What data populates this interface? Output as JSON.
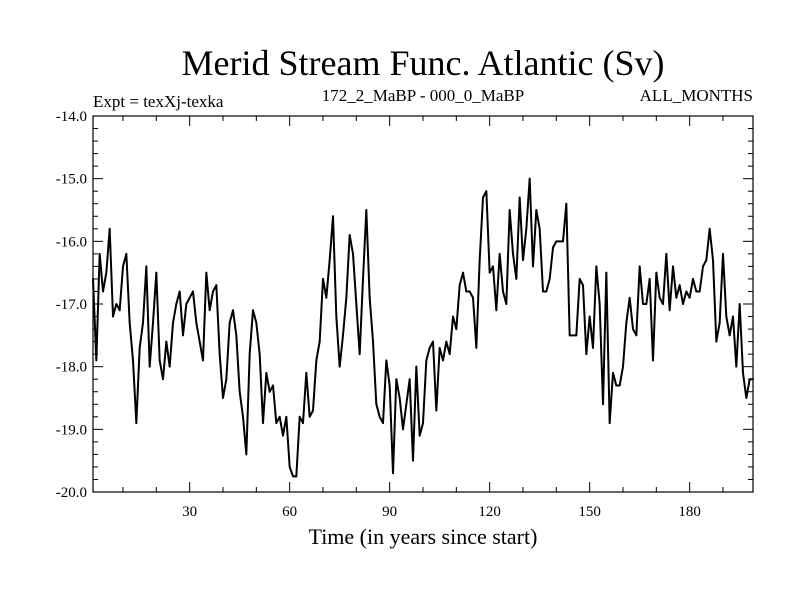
{
  "chart_data": {
    "type": "line",
    "title": "Merid Stream Func. Atlantic (Sv)",
    "subtitle_left": "Expt = texXj-texka",
    "subtitle_center": "172_2_MaBP - 000_0_MaBP",
    "subtitle_right": "ALL_MONTHS",
    "xlabel": "Time (in years since start)",
    "ylabel": "",
    "xlim": [
      1,
      199
    ],
    "ylim": [
      -20.0,
      -14.0
    ],
    "xticks": [
      30,
      60,
      90,
      120,
      150,
      180
    ],
    "yticks": [
      -14.0,
      -15.0,
      -16.0,
      -17.0,
      -18.0,
      -19.0,
      -20.0
    ],
    "ytick_labels": [
      "-14.0",
      "-15.0",
      "-16.0",
      "-17.0",
      "-18.0",
      "-19.0",
      "-20.0"
    ],
    "series": [
      {
        "name": "Merid Stream Func. Atlantic",
        "x": [
          1,
          2,
          3,
          4,
          5,
          6,
          7,
          8,
          9,
          10,
          11,
          12,
          13,
          14,
          15,
          16,
          17,
          18,
          19,
          20,
          21,
          22,
          23,
          24,
          25,
          26,
          27,
          28,
          29,
          30,
          31,
          32,
          33,
          34,
          35,
          36,
          37,
          38,
          39,
          40,
          41,
          42,
          43,
          44,
          45,
          46,
          47,
          48,
          49,
          50,
          51,
          52,
          53,
          54,
          55,
          56,
          57,
          58,
          59,
          60,
          61,
          62,
          63,
          64,
          65,
          66,
          67,
          68,
          69,
          70,
          71,
          72,
          73,
          74,
          75,
          76,
          77,
          78,
          79,
          80,
          81,
          82,
          83,
          84,
          85,
          86,
          87,
          88,
          89,
          90,
          91,
          92,
          93,
          94,
          95,
          96,
          97,
          98,
          99,
          100,
          101,
          102,
          103,
          104,
          105,
          106,
          107,
          108,
          109,
          110,
          111,
          112,
          113,
          114,
          115,
          116,
          117,
          118,
          119,
          120,
          121,
          122,
          123,
          124,
          125,
          126,
          127,
          128,
          129,
          130,
          131,
          132,
          133,
          134,
          135,
          136,
          137,
          138,
          139,
          140,
          141,
          142,
          143,
          144,
          145,
          146,
          147,
          148,
          149,
          150,
          151,
          152,
          153,
          154,
          155,
          156,
          157,
          158,
          159,
          160,
          161,
          162,
          163,
          164,
          165,
          166,
          167,
          168,
          169,
          170,
          171,
          172,
          173,
          174,
          175,
          176,
          177,
          178,
          179,
          180,
          181,
          182,
          183,
          184,
          185,
          186,
          187,
          188,
          189,
          190,
          191,
          192,
          193,
          194,
          195,
          196,
          197,
          198,
          199
        ],
        "values": [
          -16.6,
          -17.9,
          -16.2,
          -16.8,
          -16.5,
          -15.8,
          -17.2,
          -17.0,
          -17.1,
          -16.4,
          -16.2,
          -17.3,
          -17.9,
          -18.9,
          -17.7,
          -17.3,
          -16.4,
          -18.0,
          -17.3,
          -16.5,
          -17.9,
          -18.2,
          -17.6,
          -18.0,
          -17.3,
          -17.0,
          -16.8,
          -17.5,
          -17.0,
          -16.9,
          -16.8,
          -17.3,
          -17.6,
          -17.9,
          -16.5,
          -17.1,
          -16.8,
          -16.7,
          -17.8,
          -18.5,
          -18.2,
          -17.3,
          -17.1,
          -17.5,
          -18.4,
          -18.8,
          -19.4,
          -17.8,
          -17.1,
          -17.3,
          -17.8,
          -18.9,
          -18.1,
          -18.4,
          -18.3,
          -18.9,
          -18.8,
          -19.1,
          -18.8,
          -19.6,
          -19.75,
          -19.75,
          -18.8,
          -18.9,
          -18.1,
          -18.8,
          -18.7,
          -17.9,
          -17.6,
          -16.6,
          -16.9,
          -16.3,
          -15.6,
          -17.2,
          -18.0,
          -17.5,
          -16.9,
          -15.9,
          -16.2,
          -17.0,
          -17.8,
          -16.6,
          -15.5,
          -16.9,
          -17.6,
          -18.6,
          -18.8,
          -18.9,
          -17.9,
          -18.3,
          -19.7,
          -18.2,
          -18.5,
          -19.0,
          -18.6,
          -18.2,
          -19.5,
          -18.0,
          -19.1,
          -18.9,
          -17.9,
          -17.7,
          -17.6,
          -18.7,
          -17.7,
          -17.9,
          -17.6,
          -17.8,
          -17.2,
          -17.4,
          -16.7,
          -16.5,
          -16.8,
          -16.8,
          -16.9,
          -17.7,
          -16.3,
          -15.3,
          -15.2,
          -16.5,
          -16.4,
          -17.1,
          -16.2,
          -16.8,
          -17.0,
          -15.5,
          -16.2,
          -16.6,
          -15.3,
          -16.3,
          -15.8,
          -15.0,
          -16.4,
          -15.5,
          -15.8,
          -16.8,
          -16.8,
          -16.6,
          -16.1,
          -16.0,
          -16.0,
          -16.0,
          -15.4,
          -17.5,
          -17.5,
          -17.5,
          -16.6,
          -16.7,
          -17.8,
          -17.2,
          -17.7,
          -16.4,
          -17.0,
          -18.6,
          -16.5,
          -18.9,
          -18.1,
          -18.3,
          -18.3,
          -18.0,
          -17.3,
          -16.9,
          -17.4,
          -17.5,
          -16.4,
          -17.0,
          -17.0,
          -16.6,
          -17.9,
          -16.5,
          -16.9,
          -17.0,
          -16.2,
          -17.1,
          -16.4,
          -16.9,
          -16.7,
          -17.0,
          -16.8,
          -16.9,
          -16.6,
          -16.8,
          -16.8,
          -16.4,
          -16.3,
          -15.8,
          -16.3,
          -17.6,
          -17.3,
          -16.2,
          -17.2,
          -17.5,
          -17.2,
          -18.0,
          -17.0,
          -18.1,
          -18.5,
          -18.2,
          -18.2
        ]
      }
    ]
  }
}
